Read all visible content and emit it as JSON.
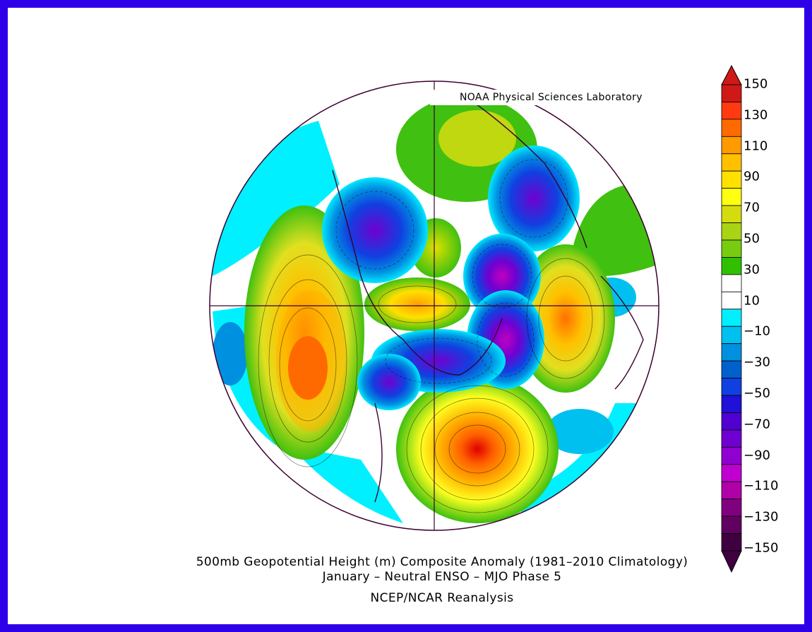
{
  "credit": "NOAA Physical Sciences Laboratory",
  "title": {
    "line1": "500mb Geopotential Height (m) Composite Anomaly (1981–2010 Climatology)",
    "line2": "January – Neutral ENSO – MJO Phase 5",
    "line3": "NCEP/NCAR Reanalysis"
  },
  "colorbar": {
    "labels": [
      "150",
      "130",
      "110",
      "90",
      "70",
      "50",
      "30",
      "10",
      "−10",
      "−30",
      "−50",
      "−70",
      "−90",
      "−110",
      "−130",
      "−150"
    ],
    "colors": [
      "#d01818",
      "#ff3a10",
      "#ff6a00",
      "#ff9a00",
      "#ffc000",
      "#ffe100",
      "#ffff10",
      "#d4dc10",
      "#a8d414",
      "#78cc10",
      "#30c000",
      "#ffffff",
      "#ffffff",
      "#00f0ff",
      "#00c0f0",
      "#0090e0",
      "#0060cc",
      "#1040e0",
      "#2010d8",
      "#5000d0",
      "#7000d0",
      "#9000d0",
      "#c000d0",
      "#b000a8",
      "#800080",
      "#600060",
      "#400040"
    ]
  },
  "map": {
    "projection": "north-polar-stereographic",
    "anomalies": [
      {
        "name": "north-atlantic-high",
        "value": 130
      },
      {
        "name": "north-pacific-high",
        "value": 110
      },
      {
        "name": "siberia-high",
        "value": 100
      },
      {
        "name": "greenland-low",
        "value": -110
      },
      {
        "name": "arctic-canada-low",
        "value": -90
      },
      {
        "name": "central-asia-low",
        "value": -100
      }
    ]
  }
}
